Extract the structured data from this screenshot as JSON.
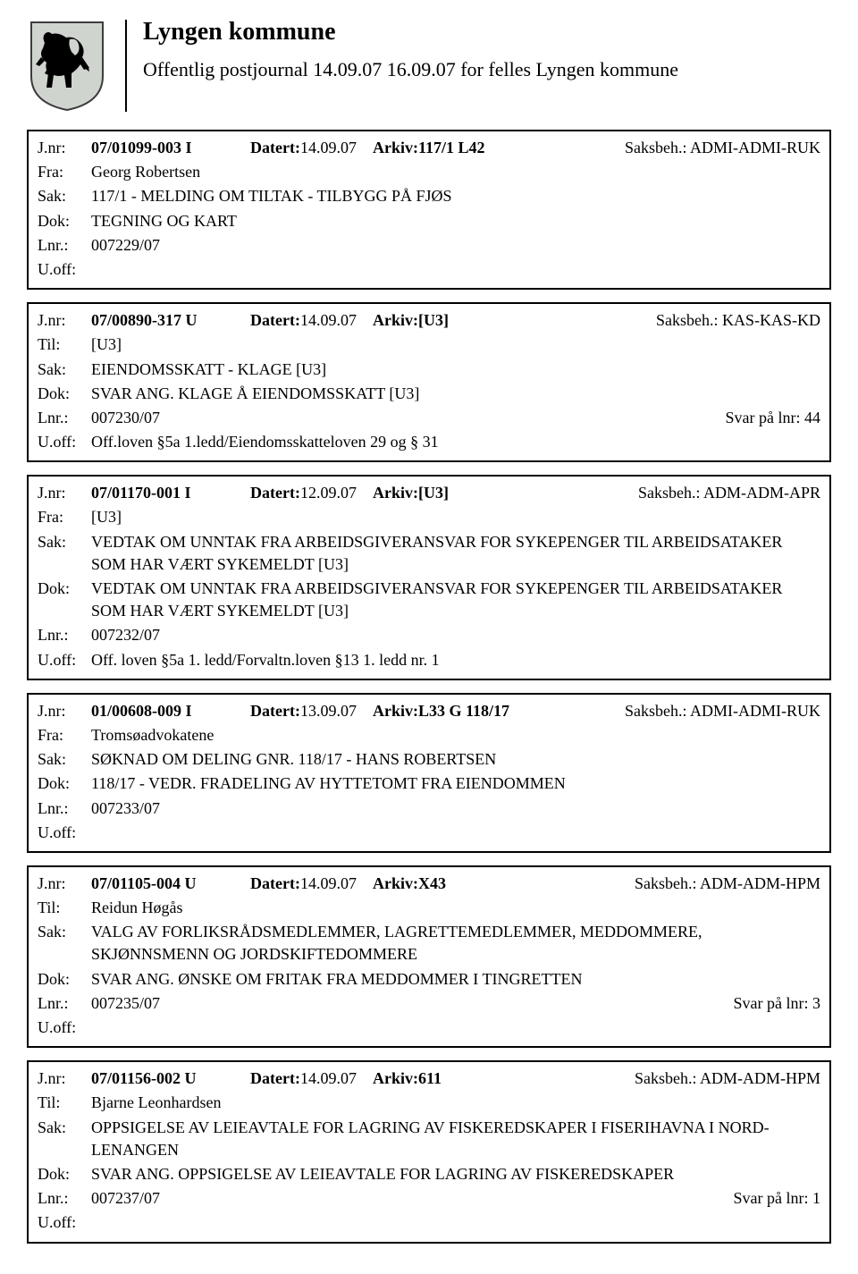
{
  "header": {
    "title": "Lyngen kommune",
    "subtitle": "Offentlig postjournal 14.09.07 16.09.07 for felles Lyngen kommune"
  },
  "labels": {
    "jnr": "J.nr:",
    "fra": "Fra:",
    "til": "Til:",
    "sak": "Sak:",
    "dok": "Dok:",
    "lnr": "Lnr.:",
    "uoff": "U.off:",
    "datert": "Datert:",
    "arkiv": "Arkiv:",
    "saksbeh": "Saksbeh.:"
  },
  "entries": [
    {
      "jnr": "07/01099-003 I",
      "datert": "14.09.07",
      "arkiv": "117/1 L42",
      "saksbeh": "ADMI-ADMI-RUK",
      "party_label": "Fra:",
      "party": "Georg Robertsen",
      "sak": "117/1 - MELDING OM TILTAK - TILBYGG PÅ FJØS",
      "dok": "TEGNING OG KART",
      "lnr": "007229/07",
      "svar": "",
      "uoff": ""
    },
    {
      "jnr": "07/00890-317 U",
      "datert": "14.09.07",
      "arkiv": "[U3]",
      "saksbeh": "KAS-KAS-KD",
      "party_label": "Til:",
      "party": "[U3]",
      "sak": "EIENDOMSSKATT - KLAGE [U3]",
      "dok": "SVAR ANG. KLAGE Å EIENDOMSSKATT [U3]",
      "lnr": "007230/07",
      "svar": "Svar på lnr: 44",
      "uoff": "Off.loven §5a 1.ledd/Eiendomsskatteloven 29 og § 31"
    },
    {
      "jnr": "07/01170-001 I",
      "datert": "12.09.07",
      "arkiv": "[U3]",
      "saksbeh": "ADM-ADM-APR",
      "party_label": "Fra:",
      "party": "[U3]",
      "sak": "VEDTAK OM UNNTAK FRA ARBEIDSGIVERANSVAR FOR SYKEPENGER TIL ARBEIDSATAKER SOM HAR VÆRT SYKEMELDT [U3]",
      "dok": "VEDTAK OM UNNTAK FRA ARBEIDSGIVERANSVAR FOR SYKEPENGER TIL ARBEIDSATAKER SOM HAR VÆRT SYKEMELDT [U3]",
      "lnr": "007232/07",
      "svar": "",
      "uoff": "Off. loven §5a 1. ledd/Forvaltn.loven §13 1. ledd nr. 1"
    },
    {
      "jnr": "01/00608-009 I",
      "datert": "13.09.07",
      "arkiv": "L33  G 118/17",
      "saksbeh": "ADMI-ADMI-RUK",
      "party_label": "Fra:",
      "party": "Tromsøadvokatene",
      "sak": "SØKNAD OM DELING GNR. 118/17 - HANS ROBERTSEN",
      "dok": "118/17 - VEDR. FRADELING AV HYTTETOMT FRA EIENDOMMEN",
      "lnr": "007233/07",
      "svar": "",
      "uoff": ""
    },
    {
      "jnr": "07/01105-004 U",
      "datert": "14.09.07",
      "arkiv": "X43",
      "saksbeh": "ADM-ADM-HPM",
      "party_label": "Til:",
      "party": "Reidun Høgås",
      "sak": "VALG AV FORLIKSRÅDSMEDLEMMER, LAGRETTEMEDLEMMER, MEDDOMMERE, SKJØNNSMENN OG JORDSKIFTEDOMMERE",
      "dok": "SVAR ANG. ØNSKE OM FRITAK FRA MEDDOMMER I TINGRETTEN",
      "lnr": "007235/07",
      "svar": "Svar på lnr: 3",
      "uoff": ""
    },
    {
      "jnr": "07/01156-002 U",
      "datert": "14.09.07",
      "arkiv": "611",
      "saksbeh": "ADM-ADM-HPM",
      "party_label": "Til:",
      "party": "Bjarne Leonhardsen",
      "sak": "OPPSIGELSE AV LEIEAVTALE FOR LAGRING AV FISKEREDSKAPER I FISERIHAVNA I NORD-LENANGEN",
      "dok": "SVAR ANG. OPPSIGELSE AV LEIEAVTALE FOR LAGRING AV FISKEREDSKAPER",
      "lnr": "007237/07",
      "svar": "Svar på lnr: 1",
      "uoff": ""
    }
  ],
  "colors": {
    "text": "#000000",
    "background": "#ffffff",
    "border": "#000000",
    "shield_fill": "#d0d4cf",
    "shield_stroke": "#3c3c3c"
  }
}
